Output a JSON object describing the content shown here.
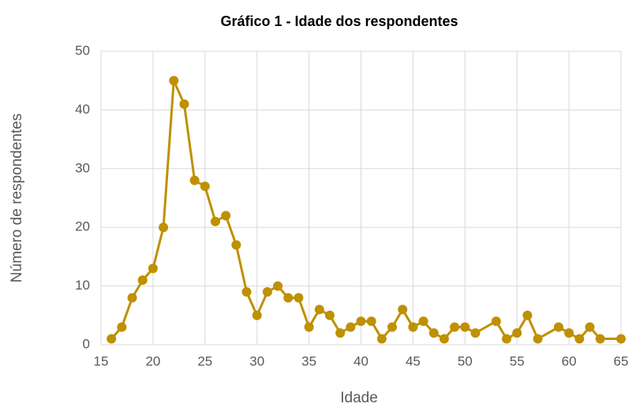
{
  "chart_data": {
    "type": "line",
    "title": "Gráfico 1 - Idade dos respondentes",
    "xlabel": "Idade",
    "ylabel": "Número de respondentes",
    "x": [
      16,
      17,
      18,
      19,
      20,
      21,
      22,
      23,
      24,
      25,
      26,
      27,
      28,
      29,
      30,
      31,
      32,
      33,
      34,
      35,
      36,
      37,
      38,
      39,
      40,
      41,
      42,
      43,
      44,
      45,
      46,
      47,
      48,
      49,
      50,
      51,
      53,
      54,
      55,
      56,
      57,
      59,
      60,
      61,
      62,
      63,
      65
    ],
    "series": [
      {
        "name": "Número de respondentes",
        "color": "#bf9000",
        "values": [
          1,
          3,
          8,
          11,
          13,
          20,
          45,
          41,
          28,
          27,
          21,
          22,
          17,
          9,
          5,
          9,
          10,
          8,
          8,
          3,
          6,
          5,
          2,
          3,
          4,
          4,
          1,
          3,
          6,
          3,
          4,
          2,
          1,
          3,
          3,
          2,
          4,
          1,
          2,
          5,
          1,
          3,
          2,
          1,
          3,
          1,
          1
        ]
      }
    ],
    "xlim": [
      15,
      65
    ],
    "xticks": [
      15,
      20,
      25,
      30,
      35,
      40,
      45,
      50,
      55,
      60,
      65
    ],
    "ylim": [
      0,
      50
    ],
    "yticks": [
      0,
      10,
      20,
      30,
      40,
      50
    ],
    "grid": true,
    "markers": true
  }
}
